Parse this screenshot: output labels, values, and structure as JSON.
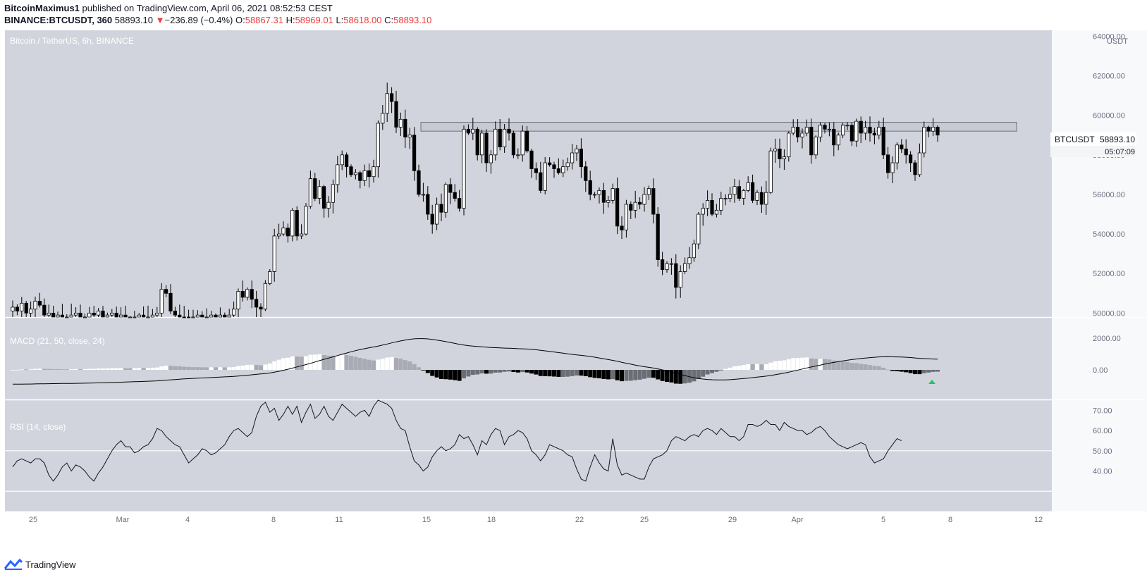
{
  "header": {
    "author": "BitcoinMaximus1",
    "published_text": "published on TradingView.com, April 06, 2021 08:52:53 CEST",
    "symbol_line": "BINANCE:BTCUSDT, 360",
    "last": "58893.10",
    "change": "−236.89 (−0.4%)",
    "open_label": "O:",
    "open": "58867.31",
    "high_label": "H:",
    "high": "58969.01",
    "low_label": "L:",
    "low": "58618.00",
    "close_label": "C:",
    "close": "58893.10"
  },
  "colors": {
    "pane_bg": "#d1d4dc",
    "pane_bg_light": "#d8dbe2",
    "candle_up": "#ffffff",
    "candle_down": "#000000",
    "change_red": "#ef3b3b",
    "signal_green": "#22c55e"
  },
  "footer": {
    "logo_icon": "tradingview-logo-icon",
    "brand": "TradingView"
  },
  "chart_data": [
    {
      "type": "candlestick",
      "title": "Bitcoin / TetherUS, 6h, BINANCE",
      "currency": "USDT",
      "ylim": [
        49800,
        64300
      ],
      "y_ticks": [
        "64000.00",
        "62000.00",
        "60000.00",
        "58000.00",
        "56000.00",
        "54000.00",
        "52000.00",
        "50000.00"
      ],
      "x_ticks": [
        "25",
        "Mar",
        "4",
        "8",
        "11",
        "15",
        "18",
        "22",
        "25",
        "29",
        "Apr",
        "5",
        "8",
        "12"
      ],
      "price_tag": {
        "symbol": "BTCUSDT",
        "price": "58893.10",
        "countdown": "05:07:09"
      },
      "resistance_zone": {
        "from": 59200,
        "to": 59650
      },
      "closes": [
        50300,
        50100,
        50500,
        50000,
        50200,
        50600,
        50400,
        49900,
        50000,
        49800,
        49900,
        49700,
        49800,
        49900,
        50000,
        49700,
        49800,
        50000,
        49900,
        50100,
        49800,
        49900,
        50000,
        49800,
        49900,
        49600,
        49700,
        49800,
        49900,
        49700,
        49800,
        49900,
        50000,
        51200,
        51000,
        50100,
        49900,
        49800,
        49700,
        49600,
        49800,
        49900,
        49700,
        49800,
        49900,
        49800,
        49900,
        49700,
        49900,
        50200,
        51100,
        50800,
        51200,
        50700,
        50300,
        50200,
        51500,
        52100,
        53900,
        54000,
        54300,
        53900,
        55200,
        53900,
        54000,
        55400,
        56800,
        55800,
        56400,
        55300,
        55600,
        56500,
        57500,
        58000,
        57400,
        57000,
        57100,
        56700,
        57200,
        56900,
        57400,
        59600,
        60100,
        61100,
        60700,
        59400,
        59800,
        58900,
        59000,
        57200,
        56000,
        56000,
        55000,
        54500,
        55500,
        55100,
        56500,
        56100,
        55800,
        55300,
        59300,
        59100,
        59300,
        58000,
        59100,
        57600,
        58000,
        59300,
        58400,
        59300,
        59100,
        58000,
        58000,
        59200,
        58200,
        57300,
        57100,
        56200,
        57600,
        57500,
        57300,
        57100,
        57400,
        57600,
        58100,
        58300,
        57400,
        56700,
        56000,
        56000,
        56200,
        55600,
        55700,
        56300,
        54400,
        54200,
        55500,
        55200,
        55600,
        55500,
        56000,
        56300,
        55000,
        52700,
        52200,
        52500,
        52500,
        51300,
        52100,
        52500,
        52800,
        53500,
        55000,
        55300,
        55700,
        55000,
        55200,
        55800,
        55800,
        56000,
        56400,
        55800,
        56200,
        56600,
        55700,
        56100,
        55500,
        56100,
        58200,
        58300,
        57800,
        57900,
        59100,
        59400,
        58900,
        59100,
        59400,
        58000,
        58900,
        59500,
        59300,
        59300,
        58500,
        59000,
        59500,
        59500,
        58700,
        59700,
        59100,
        59400,
        59100,
        59000,
        59400,
        58000,
        57100,
        57600,
        58500,
        58300,
        58000,
        57600,
        57000,
        58100,
        59400,
        59200,
        59400,
        59000
      ]
    },
    {
      "type": "histogram+line",
      "title": "MACD (21, 50, close, 24)",
      "y_ticks": [
        "2000.00",
        "0.00"
      ]
    },
    {
      "type": "line",
      "title": "RSI (14, close)",
      "ylim": [
        20,
        75
      ],
      "y_ticks": [
        "70.00",
        "60.00",
        "50.00",
        "40.00"
      ],
      "values": [
        42,
        45,
        46,
        45,
        44,
        46,
        46,
        44,
        38,
        35,
        38,
        42,
        44,
        40,
        43,
        42,
        40,
        37,
        35,
        39,
        42,
        46,
        50,
        53,
        55,
        52,
        52,
        49,
        50,
        52,
        53,
        56,
        61,
        60,
        57,
        55,
        53,
        52,
        48,
        44,
        46,
        48,
        51,
        50,
        48,
        49,
        51,
        53,
        57,
        60,
        61,
        59,
        57,
        59,
        67,
        72,
        74,
        69,
        71,
        65,
        68,
        72,
        68,
        72,
        64,
        69,
        73,
        66,
        68,
        72,
        67,
        65,
        69,
        73,
        71,
        69,
        67,
        69,
        70,
        67,
        72,
        75,
        74,
        73,
        71,
        65,
        61,
        60,
        52,
        45,
        43,
        40,
        42,
        47,
        50,
        52,
        50,
        51,
        53,
        58,
        56,
        57,
        53,
        48,
        55,
        53,
        58,
        61,
        60,
        53,
        57,
        58,
        60,
        59,
        56,
        50,
        48,
        45,
        48,
        53,
        52,
        51,
        50,
        48,
        47,
        41,
        36,
        35,
        42,
        48,
        44,
        41,
        40,
        56,
        43,
        38,
        39,
        38,
        37,
        36,
        36,
        42,
        46,
        47,
        48,
        50,
        55,
        57,
        56,
        55,
        57,
        58,
        57,
        60,
        61,
        60,
        58,
        61,
        59,
        57,
        57,
        55,
        57,
        63,
        63,
        62,
        63,
        65,
        63,
        63,
        60,
        64,
        62,
        61,
        60,
        60,
        58,
        59,
        61,
        62,
        60,
        57,
        55,
        53,
        52,
        51,
        52,
        53,
        54,
        53,
        47,
        44,
        45,
        46,
        50,
        53,
        56,
        55
      ]
    }
  ]
}
